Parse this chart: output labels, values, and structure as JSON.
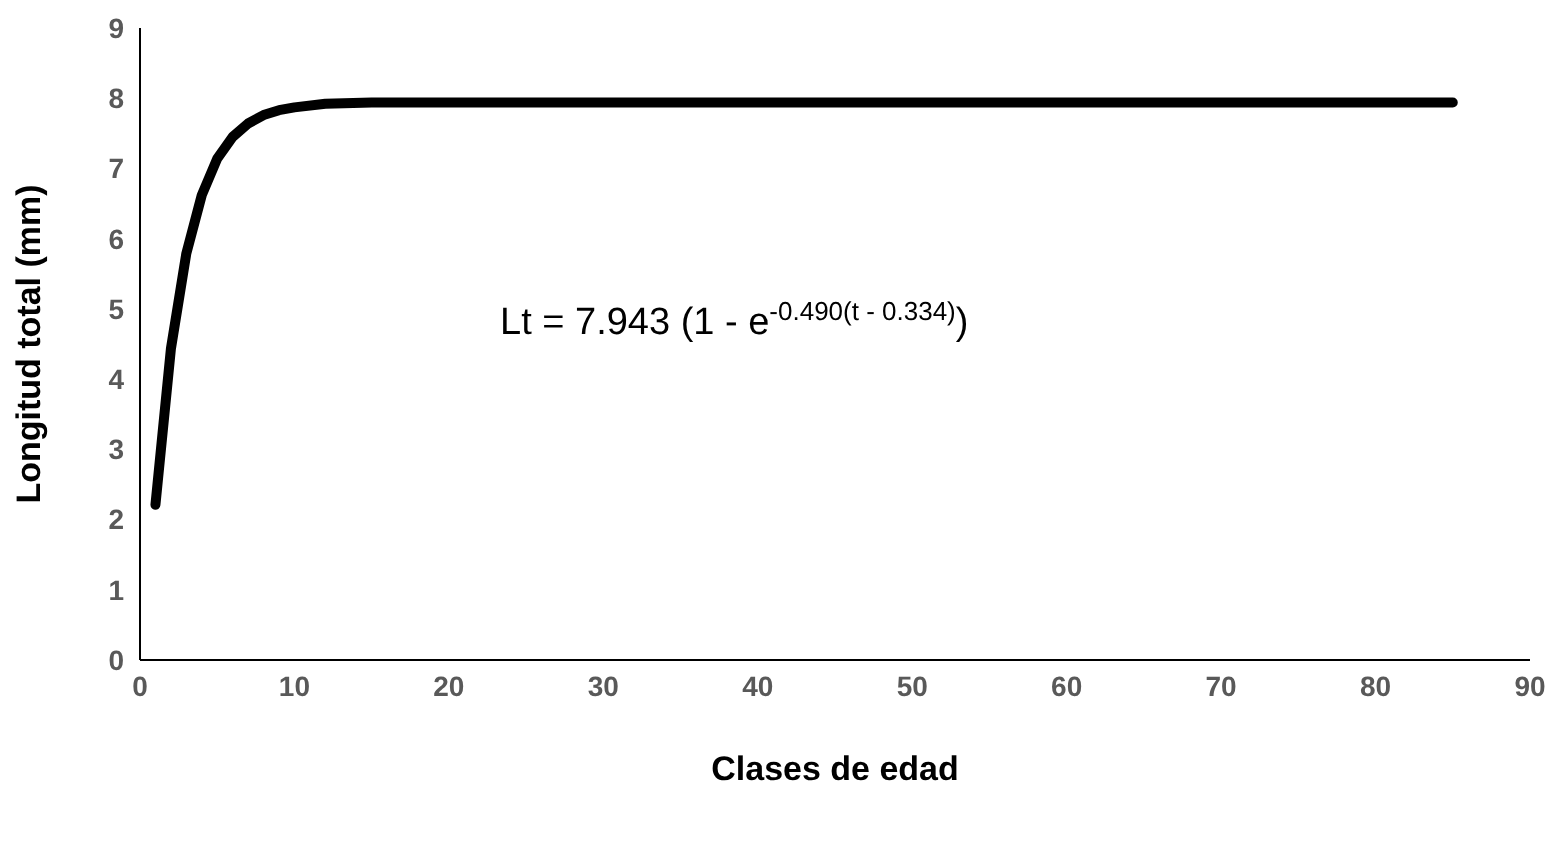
{
  "chart_data": {
    "type": "line",
    "xlabel": "Clases de edad",
    "ylabel": "Longitud total (mm)",
    "x": [
      1,
      2,
      3,
      4,
      5,
      6,
      7,
      8,
      9,
      10,
      12,
      15,
      20,
      30,
      40,
      50,
      60,
      70,
      85
    ],
    "series": [
      {
        "color": "#000000",
        "values": [
          2.21,
          4.43,
          5.79,
          6.62,
          7.14,
          7.45,
          7.64,
          7.76,
          7.83,
          7.87,
          7.92,
          7.94,
          7.94,
          7.94,
          7.94,
          7.94,
          7.94,
          7.94,
          7.94
        ]
      }
    ],
    "xlim": [
      0,
      90
    ],
    "xticks": [
      0,
      10,
      20,
      30,
      40,
      50,
      60,
      70,
      80,
      90
    ],
    "ylim": [
      0,
      9
    ],
    "yticks": [
      0,
      1,
      2,
      3,
      4,
      5,
      6,
      7,
      8,
      9
    ],
    "grid": false,
    "legend": false,
    "marker": "none",
    "line_style": "solid",
    "annotations": [
      "Lt = 7.943 (1 - e$^{-0.490(t - 0.334)}$)"
    ]
  }
}
